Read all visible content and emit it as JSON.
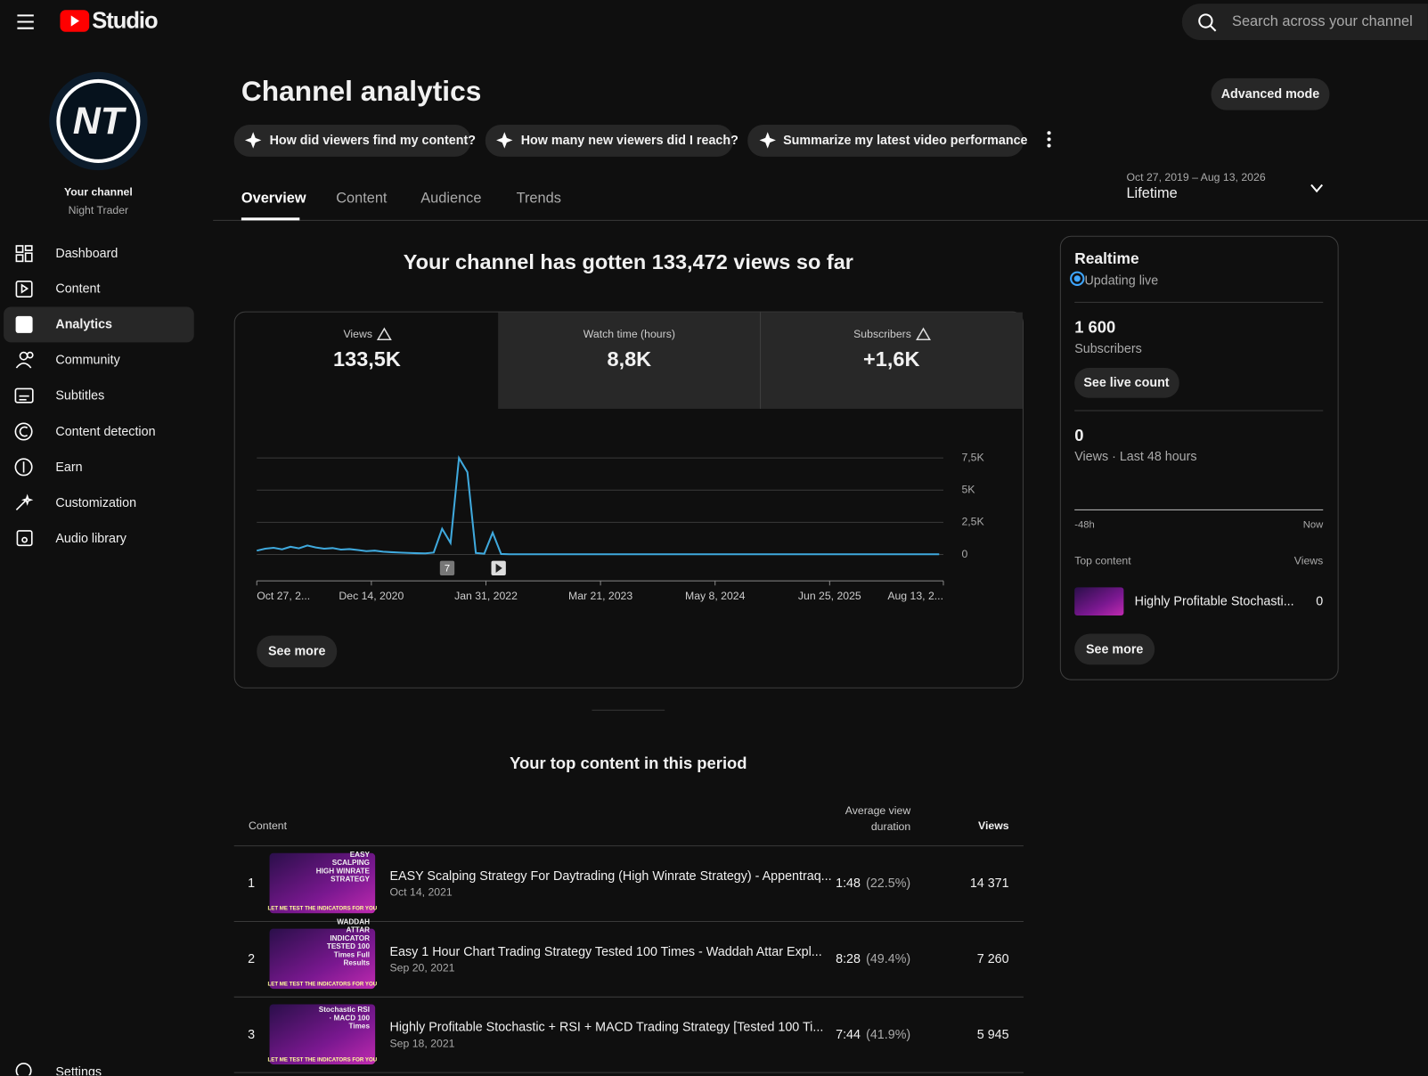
{
  "header": {
    "logo": "Studio",
    "search_placeholder": "Search across your channel"
  },
  "sidebar": {
    "avatar_text": "NT",
    "channel_label": "Your channel",
    "channel_name": "Night Trader",
    "nav": [
      "Dashboard",
      "Content",
      "Analytics",
      "Community",
      "Subtitles",
      "Content detection",
      "Earn",
      "Customization",
      "Audio library"
    ],
    "settings": "Settings"
  },
  "page": {
    "title": "Channel analytics",
    "advanced": "Advanced mode",
    "prompts": [
      "How did viewers find my content?",
      "How many new viewers did I reach?",
      "Summarize my latest video performance"
    ],
    "tabs": [
      "Overview",
      "Content",
      "Audience",
      "Trends"
    ],
    "date_range": "Oct 27, 2019 – Aug 13, 2026",
    "period": "Lifetime"
  },
  "overview": {
    "headline": "Your channel has gotten 133,472 views so far",
    "metrics": [
      {
        "label": "Views",
        "value": "133,5K"
      },
      {
        "label": "Watch time (hours)",
        "value": "8,8K"
      },
      {
        "label": "Subscribers",
        "value": "+1,6K"
      }
    ],
    "see_more": "See more"
  },
  "chart_data": {
    "type": "line",
    "color": "#3fa9dd",
    "grid": true,
    "x": [
      0,
      1,
      2,
      3,
      4,
      5,
      6,
      7,
      8,
      9,
      10,
      11,
      12,
      13,
      14,
      15,
      16,
      17,
      18,
      19,
      20,
      21,
      22,
      23,
      24,
      25,
      26,
      27,
      28,
      29,
      30,
      31,
      32,
      33,
      34,
      35,
      36,
      37,
      38,
      39,
      40,
      41,
      42,
      43,
      44,
      45,
      46,
      47,
      48,
      49,
      50,
      51,
      52,
      53,
      54,
      55,
      56,
      57,
      58,
      59,
      60,
      61,
      62,
      63,
      64,
      65,
      66,
      67,
      68,
      69,
      70,
      71,
      72,
      73,
      74,
      75,
      76,
      77,
      78,
      79,
      80,
      81
    ],
    "values": [
      300,
      450,
      520,
      400,
      600,
      480,
      700,
      550,
      450,
      500,
      380,
      420,
      350,
      260,
      300,
      220,
      180,
      150,
      120,
      100,
      90,
      150,
      2000,
      900,
      7500,
      6400,
      120,
      60,
      1700,
      40,
      20,
      20,
      20,
      20,
      20,
      20,
      20,
      20,
      20,
      20,
      20,
      20,
      20,
      20,
      20,
      20,
      20,
      20,
      20,
      20,
      20,
      20,
      20,
      20,
      20,
      20,
      20,
      20,
      20,
      20,
      20,
      20,
      20,
      20,
      20,
      20,
      20,
      20,
      20,
      20,
      20,
      20,
      20,
      20,
      20,
      20,
      20,
      20,
      20,
      20,
      20,
      20
    ],
    "xlim": [
      0,
      81.5
    ],
    "xticks": [
      {
        "value": 0,
        "label": "Oct 27, 2..."
      },
      {
        "value": 13.6,
        "label": "Dec 14, 2020"
      },
      {
        "value": 27.2,
        "label": "Jan 31, 2022"
      },
      {
        "value": 40.8,
        "label": "Mar 21, 2023"
      },
      {
        "value": 54.4,
        "label": "May 8, 2024"
      },
      {
        "value": 68,
        "label": "Jun 25, 2025"
      },
      {
        "value": 81.5,
        "label": "Aug 13, 2..."
      }
    ],
    "ylim": [
      0,
      7500
    ],
    "yticks": [
      0,
      {
        "value": 2500,
        "label": "2,5K"
      },
      {
        "value": 5000,
        "label": "5K"
      },
      {
        "value": 7500,
        "label": "7,5K"
      }
    ],
    "markers": [
      {
        "x": 22.6,
        "label": "7"
      },
      {
        "x": 28.7
      }
    ]
  },
  "realtime": {
    "title": "Realtime",
    "status": "Updating live",
    "subscribers": "1 600",
    "subscribers_label": "Subscribers",
    "live_button": "See live count",
    "views": 0,
    "views_label": "Views · Last 48 hours",
    "axis_start": "-48h",
    "axis_end": "Now",
    "top_label": "Top content",
    "views_header": "Views",
    "top_title": "Highly Profitable Stochasti...",
    "top_views": 0,
    "see_more": "See more"
  },
  "top_content": {
    "title": "Your top content in this period",
    "headers": [
      "Content",
      "Average view duration",
      "Views"
    ],
    "banner": "LET ME TEST THE INDICATORS FOR YOU",
    "rows": [
      {
        "rank": 1,
        "thumb_text": "EASY SCALPING HIGH WINRATE STRATEGY",
        "title": "EASY Scalping Strategy For Daytrading (High Winrate Strategy) - Appentraq...",
        "date": "Oct 14, 2021",
        "duration": "1:48",
        "percent": "(22.5%)",
        "views": "14 371"
      },
      {
        "rank": 2,
        "thumb_text": "WADDAH ATTAR INDICATOR TESTED 100 Times Full Results",
        "title": "Easy 1 Hour Chart Trading Strategy Tested 100 Times - Waddah Attar Expl...",
        "date": "Sep 20, 2021",
        "duration": "8:28",
        "percent": "(49.4%)",
        "views": "7 260"
      },
      {
        "rank": 3,
        "thumb_text": "Stochastic RSI · MACD 100 Times",
        "title": "Highly Profitable Stochastic + RSI + MACD Trading Strategy [Tested 100 Ti...",
        "date": "Sep 18, 2021",
        "duration": "7:44",
        "percent": "(41.9%)",
        "views": "5 945"
      }
    ]
  }
}
